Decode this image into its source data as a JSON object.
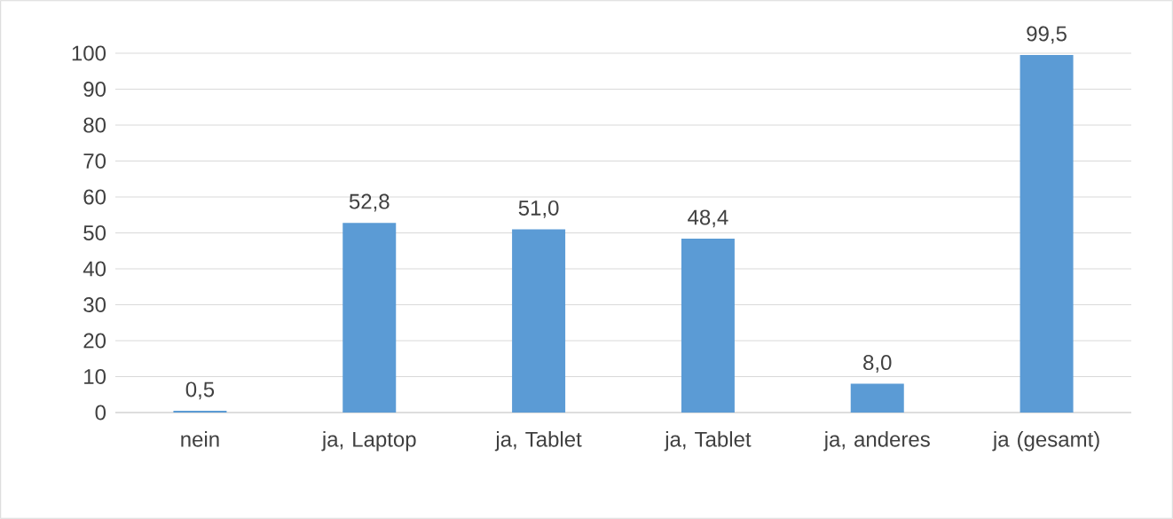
{
  "chart_data": {
    "type": "bar",
    "categories": [
      "nein",
      "ja, Laptop",
      "ja, Tablet",
      "ja, Tablet",
      "ja, anderes",
      "ja (gesamt)"
    ],
    "values": [
      0.5,
      52.8,
      51.0,
      48.4,
      8.0,
      99.5
    ],
    "value_labels": [
      "0,5",
      "52,8",
      "51,0",
      "48,4",
      "8,0",
      "99,5"
    ],
    "color": "#5b9bd5",
    "ylim": [
      0,
      100
    ],
    "yticks": [
      0,
      10,
      20,
      30,
      40,
      50,
      60,
      70,
      80,
      90,
      100
    ],
    "grid": "y"
  }
}
